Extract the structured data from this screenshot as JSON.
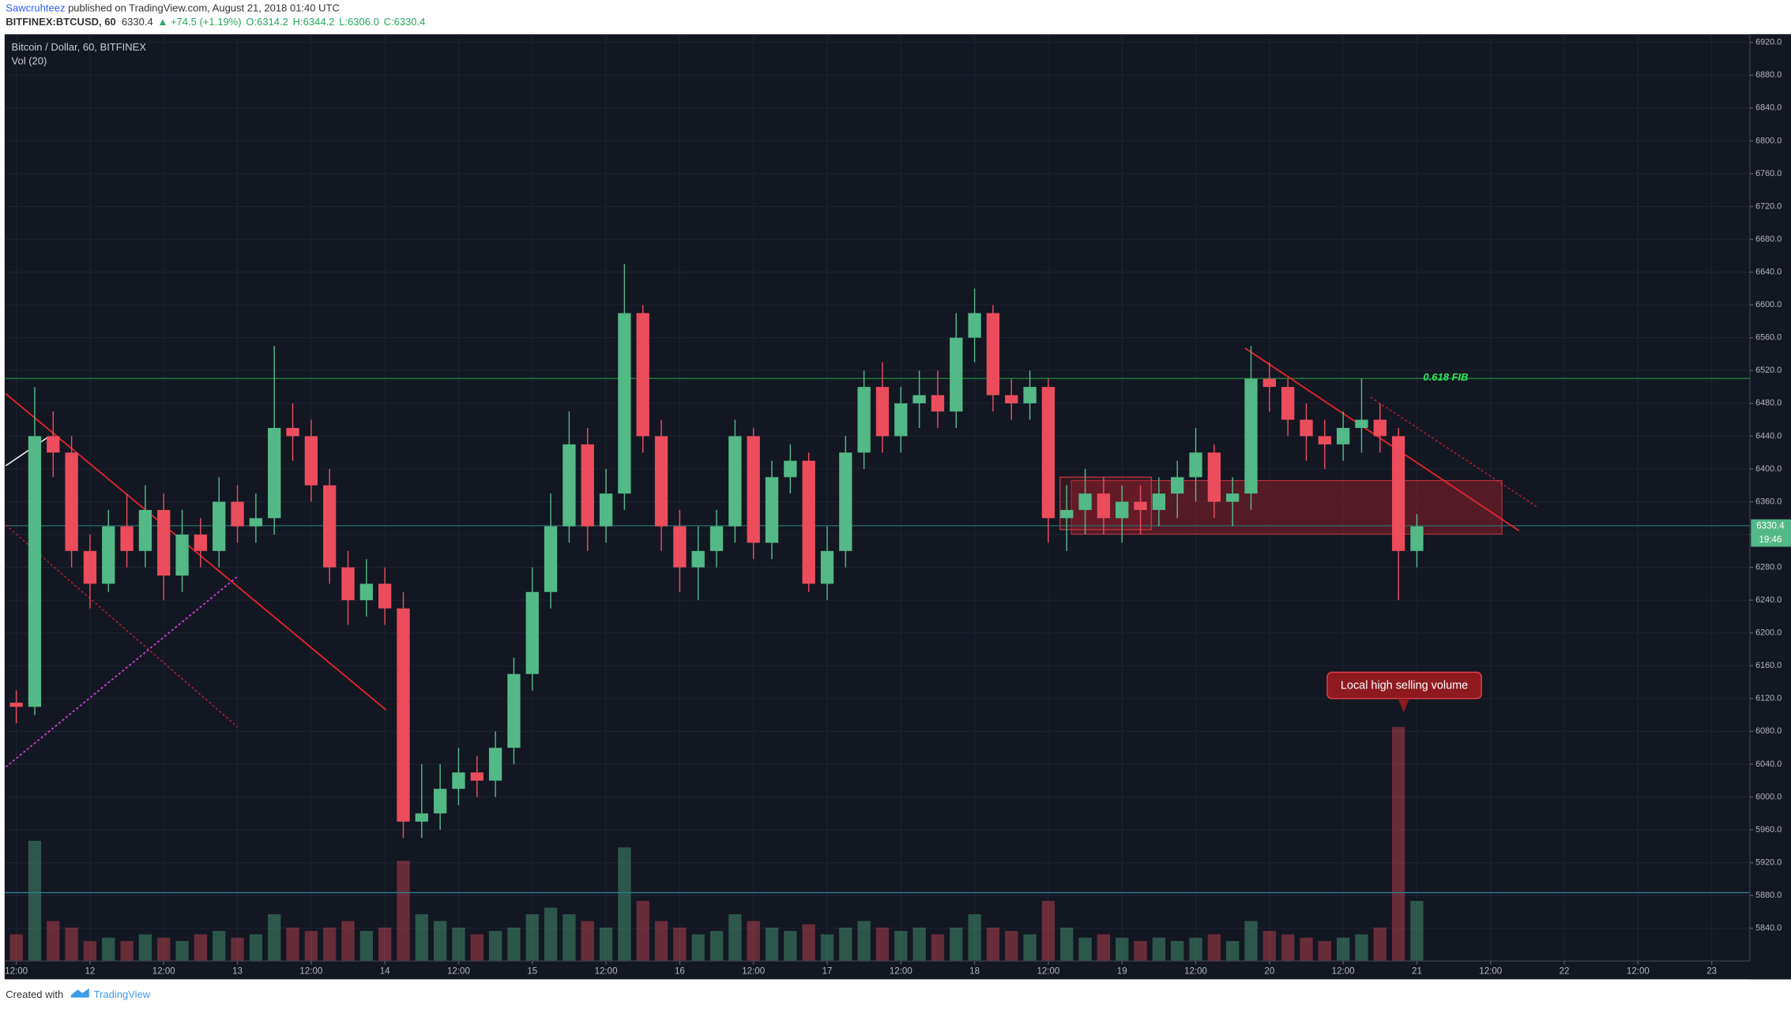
{
  "header": {
    "author": "Sawcruhteez",
    "published": "published on TradingView.com, August 21, 2018 01:40 UTC",
    "symbol": "BITFINEX:BTCUSD, 60",
    "last": "6330.4",
    "change": "▲ +74.5 (+1.19%)",
    "ohlc": [
      "O:6314.2",
      "H:6344.2",
      "L:6306.0",
      "C:6330.4"
    ]
  },
  "footer": {
    "created": "Created with",
    "brand": "TradingView"
  },
  "chart_data": {
    "type": "candlestick",
    "title": "Bitcoin / Dollar, 60, BITFINEX",
    "indicator": "Vol (20)",
    "up_color": "#53b987",
    "down_color": "#eb4d5c",
    "x": [
      0,
      3,
      6,
      9,
      12,
      15,
      18,
      21,
      24,
      27,
      30,
      33,
      36,
      39,
      42,
      45,
      48,
      51,
      54,
      57,
      60,
      63,
      66,
      69,
      72,
      75,
      78,
      81,
      84,
      87,
      90,
      93,
      96,
      99,
      102,
      105,
      108,
      111,
      114,
      117,
      120,
      123,
      126,
      129,
      132,
      135,
      138,
      141,
      144,
      147,
      150,
      153,
      156,
      159,
      162,
      165,
      168,
      171,
      174,
      177,
      180,
      183,
      186,
      189,
      192,
      195,
      198,
      201,
      204,
      207,
      210,
      213,
      216,
      219,
      222,
      225,
      228
    ],
    "open": [
      6115,
      6110,
      6440,
      6420,
      6300,
      6260,
      6330,
      6300,
      6350,
      6270,
      6320,
      6300,
      6360,
      6330,
      6340,
      6450,
      6440,
      6380,
      6280,
      6240,
      6260,
      6230,
      5970,
      5980,
      6010,
      6030,
      6020,
      6060,
      6150,
      6250,
      6330,
      6430,
      6330,
      6370,
      6590,
      6440,
      6330,
      6280,
      6300,
      6330,
      6440,
      6310,
      6390,
      6410,
      6260,
      6300,
      6420,
      6500,
      6440,
      6480,
      6490,
      6470,
      6560,
      6590,
      6490,
      6480,
      6500,
      6340,
      6350,
      6370,
      6340,
      6360,
      6350,
      6370,
      6390,
      6420,
      6360,
      6370,
      6510,
      6500,
      6460,
      6440,
      6430,
      6450,
      6460,
      6440,
      6300
    ],
    "high": [
      6130,
      6500,
      6470,
      6440,
      6320,
      6350,
      6370,
      6380,
      6370,
      6350,
      6340,
      6390,
      6380,
      6370,
      6550,
      6480,
      6460,
      6400,
      6300,
      6290,
      6280,
      6250,
      6040,
      6040,
      6060,
      6050,
      6080,
      6170,
      6280,
      6370,
      6470,
      6450,
      6400,
      6650,
      6600,
      6460,
      6350,
      6330,
      6350,
      6460,
      6450,
      6410,
      6430,
      6420,
      6330,
      6440,
      6520,
      6530,
      6500,
      6520,
      6520,
      6590,
      6620,
      6600,
      6510,
      6520,
      6510,
      6380,
      6400,
      6390,
      6380,
      6380,
      6390,
      6410,
      6450,
      6430,
      6390,
      6550,
      6530,
      6510,
      6480,
      6460,
      6470,
      6510,
      6480,
      6450,
      6345
    ],
    "low": [
      6090,
      6100,
      6390,
      6280,
      6230,
      6250,
      6280,
      6280,
      6240,
      6250,
      6280,
      6280,
      6310,
      6310,
      6320,
      6410,
      6360,
      6260,
      6210,
      6220,
      6210,
      5950,
      5950,
      5960,
      5990,
      6000,
      6000,
      6040,
      6130,
      6230,
      6310,
      6300,
      6310,
      6350,
      6420,
      6300,
      6250,
      6240,
      6280,
      6310,
      6290,
      6290,
      6370,
      6250,
      6240,
      6280,
      6400,
      6420,
      6420,
      6450,
      6450,
      6450,
      6530,
      6470,
      6460,
      6460,
      6310,
      6300,
      6320,
      6320,
      6310,
      6320,
      6330,
      6340,
      6360,
      6340,
      6330,
      6350,
      6470,
      6440,
      6410,
      6400,
      6410,
      6420,
      6420,
      6240,
      6280
    ],
    "close": [
      6110,
      6440,
      6420,
      6300,
      6260,
      6330,
      6300,
      6350,
      6270,
      6320,
      6300,
      6360,
      6330,
      6340,
      6450,
      6440,
      6380,
      6280,
      6240,
      6260,
      6230,
      5970,
      5980,
      6010,
      6030,
      6020,
      6060,
      6150,
      6250,
      6330,
      6430,
      6330,
      6370,
      6590,
      6440,
      6330,
      6280,
      6300,
      6330,
      6440,
      6310,
      6390,
      6410,
      6260,
      6300,
      6420,
      6500,
      6440,
      6480,
      6490,
      6470,
      6560,
      6590,
      6490,
      6480,
      6500,
      6340,
      6350,
      6370,
      6340,
      6360,
      6350,
      6370,
      6390,
      6420,
      6360,
      6370,
      6510,
      6500,
      6460,
      6440,
      6430,
      6450,
      6460,
      6440,
      6300,
      6330
    ],
    "volume": [
      400,
      1800,
      600,
      500,
      300,
      350,
      300,
      400,
      350,
      300,
      400,
      450,
      350,
      400,
      700,
      500,
      450,
      500,
      600,
      450,
      500,
      1500,
      700,
      600,
      500,
      400,
      450,
      500,
      700,
      800,
      700,
      600,
      500,
      1700,
      900,
      600,
      500,
      400,
      450,
      700,
      600,
      500,
      450,
      550,
      400,
      500,
      600,
      500,
      450,
      500,
      400,
      500,
      700,
      500,
      450,
      400,
      900,
      500,
      350,
      400,
      350,
      300,
      350,
      300,
      350,
      400,
      300,
      600,
      450,
      400,
      350,
      300,
      350,
      400,
      500,
      3500,
      900
    ],
    "xlim": [
      -1.9,
      282.2
    ],
    "xticks": [
      {
        "value": 0,
        "label": "12:00"
      },
      {
        "value": 12,
        "label": "12"
      },
      {
        "value": 24,
        "label": "12:00"
      },
      {
        "value": 36,
        "label": "13"
      },
      {
        "value": 48,
        "label": "12:00"
      },
      {
        "value": 60,
        "label": "14"
      },
      {
        "value": 72,
        "label": "12:00"
      },
      {
        "value": 84,
        "label": "15"
      },
      {
        "value": 96,
        "label": "12:00"
      },
      {
        "value": 108,
        "label": "16"
      },
      {
        "value": 120,
        "label": "12:00"
      },
      {
        "value": 132,
        "label": "17"
      },
      {
        "value": 144,
        "label": "12:00"
      },
      {
        "value": 156,
        "label": "18"
      },
      {
        "value": 168,
        "label": "12:00"
      },
      {
        "value": 180,
        "label": "19"
      },
      {
        "value": 192,
        "label": "12:00"
      },
      {
        "value": 204,
        "label": "20"
      },
      {
        "value": 216,
        "label": "12:00"
      },
      {
        "value": 228,
        "label": "21"
      },
      {
        "value": 240,
        "label": "12:00"
      },
      {
        "value": 252,
        "label": "22"
      },
      {
        "value": 264,
        "label": "12:00"
      },
      {
        "value": 276,
        "label": "23"
      }
    ],
    "ylim": [
      5800,
      6930
    ],
    "yticks": [
      {
        "value": 5840,
        "label": "5840.0"
      },
      {
        "value": 5880,
        "label": "5880.0"
      },
      {
        "value": 5920,
        "label": "5920.0"
      },
      {
        "value": 5960,
        "label": "5960.0"
      },
      {
        "value": 6000,
        "label": "6000.0"
      },
      {
        "value": 6040,
        "label": "6040.0"
      },
      {
        "value": 6080,
        "label": "6080.0"
      },
      {
        "value": 6120,
        "label": "6120.0"
      },
      {
        "value": 6160,
        "label": "6160.0"
      },
      {
        "value": 6200,
        "label": "6200.0"
      },
      {
        "value": 6240,
        "label": "6240.0"
      },
      {
        "value": 6280,
        "label": "6280.0"
      },
      {
        "value": 6320,
        "label": "6320.0"
      },
      {
        "value": 6360,
        "label": "6360.0"
      },
      {
        "value": 6400,
        "label": "6400.0"
      },
      {
        "value": 6440,
        "label": "6440.0"
      },
      {
        "value": 6480,
        "label": "6480.0"
      },
      {
        "value": 6520,
        "label": "6520.0"
      },
      {
        "value": 6560,
        "label": "6560.0"
      },
      {
        "value": 6600,
        "label": "6600.0"
      },
      {
        "value": 6640,
        "label": "6640.0"
      },
      {
        "value": 6680,
        "label": "6680.0"
      },
      {
        "value": 6720,
        "label": "6720.0"
      },
      {
        "value": 6760,
        "label": "6760.0"
      },
      {
        "value": 6800,
        "label": "6800.0"
      },
      {
        "value": 6840,
        "label": "6840.0"
      },
      {
        "value": 6880,
        "label": "6880.0"
      },
      {
        "value": 6920,
        "label": "6920.0"
      }
    ],
    "grid": true,
    "annotations": {
      "fib": "0.618 FIB",
      "callout": "Local high selling volume"
    },
    "price_label": "6330.4",
    "countdown": "19:46"
  }
}
